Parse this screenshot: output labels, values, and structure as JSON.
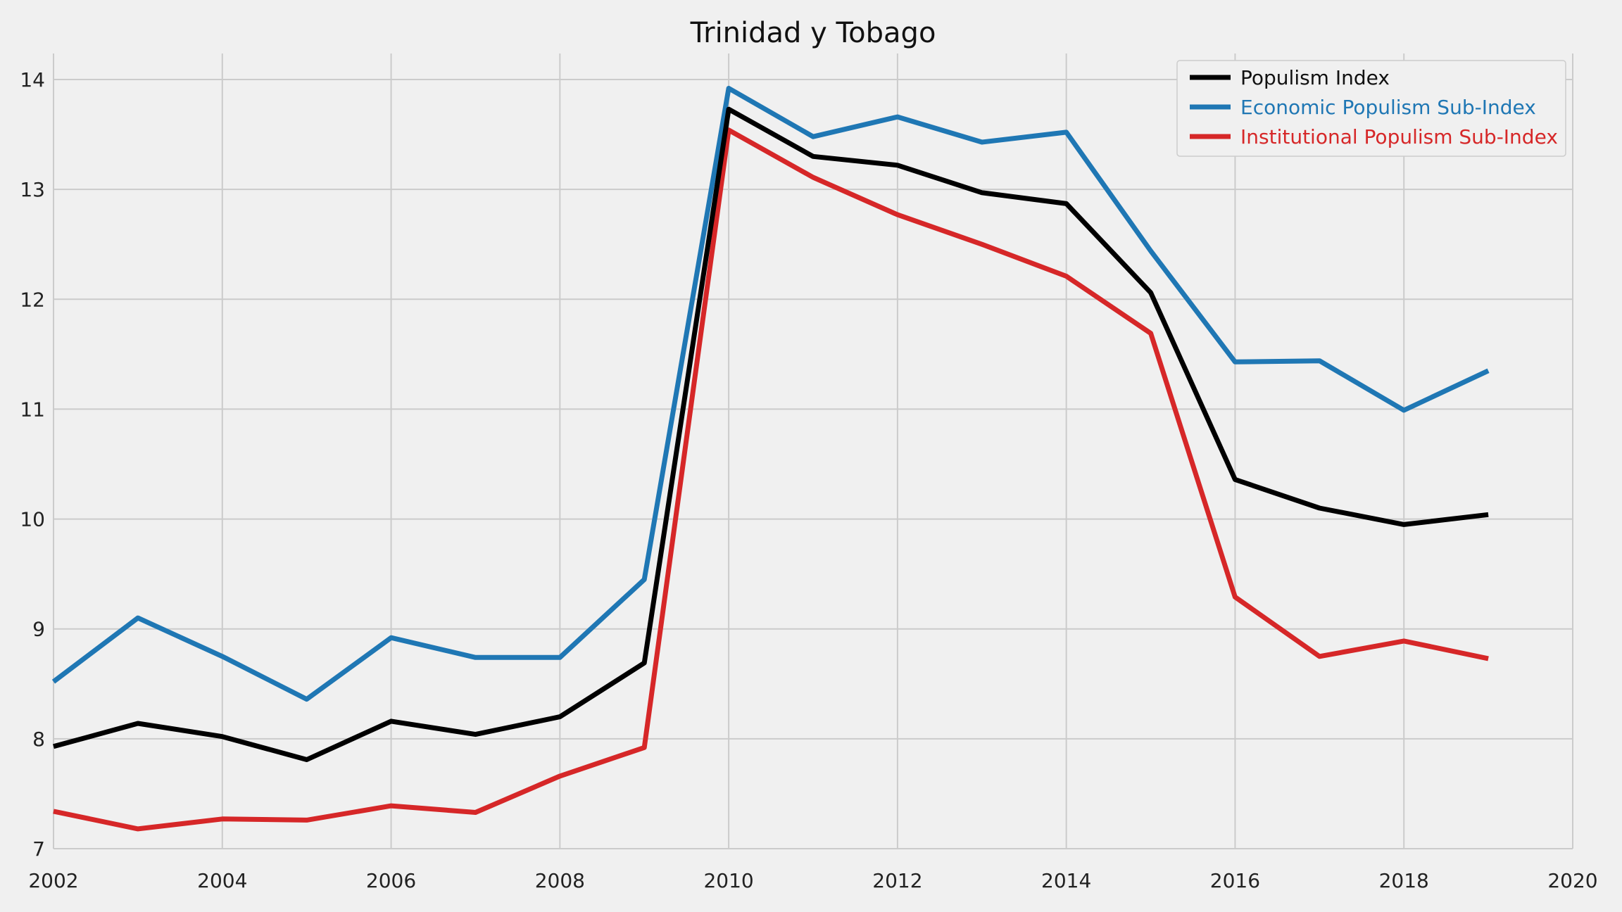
{
  "chart_data": {
    "type": "line",
    "title": "Trinidad y Tobago",
    "xlabel": "",
    "ylabel": "",
    "xlim": [
      2002,
      2020
    ],
    "ylim": [
      7,
      14.25
    ],
    "grid": true,
    "legend_position": "top-right",
    "x_ticks": [
      "2002",
      "2004",
      "2006",
      "2008",
      "2010",
      "2012",
      "2014",
      "2016",
      "2018",
      "2020"
    ],
    "y_ticks": [
      "7",
      "8",
      "9",
      "10",
      "11",
      "12",
      "13",
      "14"
    ],
    "x": [
      2002,
      2003,
      2004,
      2005,
      2006,
      2007,
      2008,
      2009,
      2010,
      2011,
      2012,
      2013,
      2014,
      2015,
      2016,
      2017,
      2018,
      2019
    ],
    "series": [
      {
        "name": "Populism Index",
        "color": "#000000",
        "values": [
          7.93,
          8.14,
          8.02,
          7.81,
          8.16,
          8.04,
          8.2,
          8.69,
          13.73,
          13.3,
          13.22,
          12.97,
          12.87,
          12.06,
          10.36,
          10.1,
          9.95,
          10.04
        ]
      },
      {
        "name": "Economic Populism Sub-Index",
        "color": "#1f77b4",
        "values": [
          8.52,
          9.1,
          8.75,
          8.36,
          8.92,
          8.74,
          8.74,
          9.45,
          13.92,
          13.48,
          13.66,
          13.43,
          13.52,
          12.44,
          11.43,
          11.44,
          10.99,
          11.35
        ]
      },
      {
        "name": "Institutional Populism Sub-Index",
        "color": "#d62728",
        "values": [
          7.34,
          7.18,
          7.27,
          7.26,
          7.39,
          7.33,
          7.66,
          7.92,
          13.54,
          13.11,
          12.77,
          12.5,
          12.21,
          11.69,
          9.29,
          8.75,
          8.89,
          8.73
        ]
      }
    ]
  }
}
